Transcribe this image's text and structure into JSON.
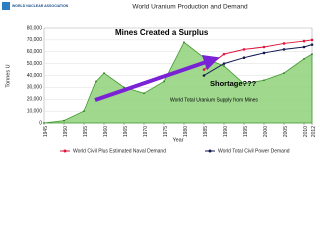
{
  "chart_data": {
    "type": "area-line",
    "title": "World Uranium Production and Demand",
    "logo": "WORLD NUCLEAR ASSOCIATION",
    "y_label": "Tonnes U",
    "x_label": "Year",
    "x": [
      1945,
      1950,
      1955,
      1958,
      1960,
      1965,
      1970,
      1975,
      1980,
      1985,
      1990,
      1995,
      2000,
      2005,
      2010,
      2012
    ],
    "area": {
      "name": "World Total Uranium Supply from Mines",
      "color": "#8fd17a",
      "values": [
        0,
        2000,
        10000,
        35000,
        42000,
        30000,
        25000,
        35000,
        68000,
        55000,
        48000,
        33000,
        36000,
        42000,
        54000,
        58000
      ]
    },
    "series": [
      {
        "name": "World Civil Plus Estimated Naval Demand",
        "color": "#e0143c",
        "values": [
          null,
          null,
          null,
          null,
          null,
          null,
          null,
          null,
          null,
          45000,
          58000,
          62000,
          64000,
          67000,
          69000,
          70000
        ]
      },
      {
        "name": "World Total Civil Power Demand",
        "color": "#101850",
        "values": [
          null,
          null,
          null,
          null,
          null,
          null,
          null,
          null,
          null,
          40000,
          50000,
          55000,
          59000,
          62000,
          64000,
          66000
        ]
      }
    ],
    "annotations": [
      "Mines Created a Surplus",
      "Shortage???"
    ],
    "xlim": [
      1945,
      2012
    ],
    "xticks": [
      1945,
      1950,
      1955,
      1960,
      1965,
      1970,
      1975,
      1980,
      1985,
      1990,
      1995,
      2000,
      2005,
      2010,
      2012
    ],
    "ylim": [
      0,
      80000
    ],
    "yticks": [
      {
        "value": 0,
        "label": "0"
      },
      {
        "value": 10000,
        "label": "10,000"
      },
      {
        "value": 20000,
        "label": "20,000"
      },
      {
        "value": 30000,
        "label": "30,000"
      },
      {
        "value": 40000,
        "label": "40,000"
      },
      {
        "value": 50000,
        "label": "50,000"
      },
      {
        "value": 60000,
        "label": "60,000"
      },
      {
        "value": 70000,
        "label": "70,000"
      },
      {
        "value": 80000,
        "label": "80,000"
      }
    ],
    "grid": true
  }
}
